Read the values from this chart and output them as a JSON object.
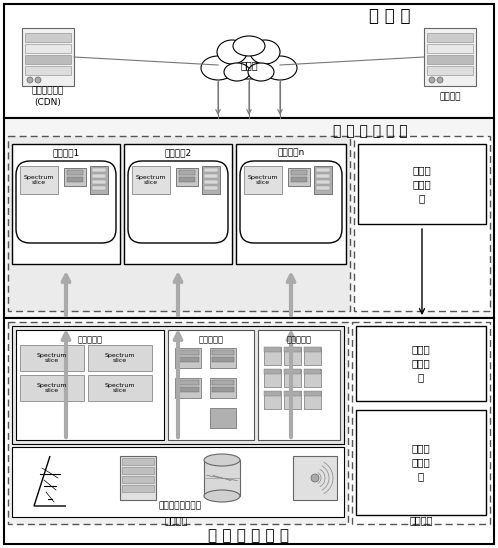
{
  "title_top": "核 心 网",
  "title_middle": "无 线 虚 拟 网 络",
  "title_bottom": "无 线 物 理 网 络",
  "core_net_label": "核心网",
  "cdn_label": "内容分发网络\n(CDN)",
  "social_label": "社交网络",
  "virtual_subnet1": "虚拟子网1",
  "virtual_subnet2": "虚拟子网2",
  "virtual_subnetn": "虚拟子网n",
  "spectrum_slice": "Spectrum\nslice",
  "wireless_pool": "无线资源池",
  "compute_pool": "计算资源池",
  "storage_pool": "存储资源池",
  "infra_label": "无线网络基础设施",
  "data_plane": "数据平面",
  "control_plane": "控制平面",
  "virtual_controller": "虚拟网\n络控制\n器",
  "physical_controller": "物理网\n络控制\n器",
  "wireless_controller": "无线网\n络控制\n器",
  "bg_color": "#ffffff"
}
